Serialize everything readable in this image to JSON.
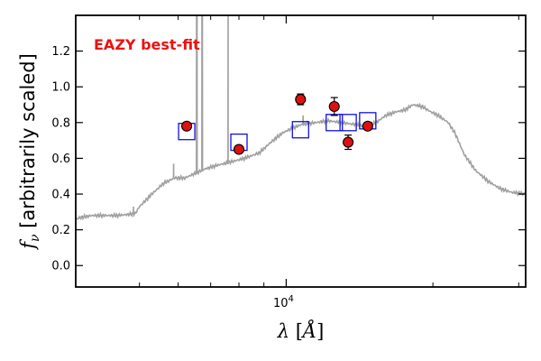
{
  "chart_data": {
    "type": "scatter",
    "title": "",
    "annotation": {
      "text": "EAZY best-fit",
      "color": "#ee1111"
    },
    "xlabel": "λ [Å]",
    "ylabel": "f_ν [arbitrarily scaled]",
    "x_scale": "log",
    "xlim": [
      3700,
      31000
    ],
    "ylim": [
      -0.12,
      1.4
    ],
    "x_major_ticks": [
      {
        "value": 10000,
        "label": "10^4"
      }
    ],
    "x_minor_ticks": [
      5000,
      6000,
      7000,
      8000,
      9000,
      20000,
      30000
    ],
    "y_ticks": [
      {
        "value": 0.0,
        "label": "0.0"
      },
      {
        "value": 0.2,
        "label": "0.2"
      },
      {
        "value": 0.4,
        "label": "0.4"
      },
      {
        "value": 0.6,
        "label": "0.6"
      },
      {
        "value": 0.8,
        "label": "0.8"
      },
      {
        "value": 1.0,
        "label": "1.0"
      },
      {
        "value": 1.2,
        "label": "1.2"
      }
    ],
    "grid": false,
    "colors": {
      "sed": "#a0a0a0",
      "model": "#1111dd",
      "observed_face": "#dd1111",
      "observed_edge": "#000000"
    },
    "sed_continuum": [
      [
        3700,
        0.26
      ],
      [
        3800,
        0.27
      ],
      [
        4000,
        0.28
      ],
      [
        4500,
        0.28
      ],
      [
        4900,
        0.29
      ],
      [
        5000,
        0.33
      ],
      [
        5300,
        0.4
      ],
      [
        5600,
        0.46
      ],
      [
        5900,
        0.49
      ],
      [
        6200,
        0.49
      ],
      [
        6550,
        0.52
      ],
      [
        6800,
        0.54
      ],
      [
        7200,
        0.56
      ],
      [
        7700,
        0.58
      ],
      [
        8200,
        0.6
      ],
      [
        8800,
        0.63
      ],
      [
        9300,
        0.69
      ],
      [
        9800,
        0.74
      ],
      [
        10300,
        0.77
      ],
      [
        10800,
        0.79
      ],
      [
        11500,
        0.8
      ],
      [
        12200,
        0.81
      ],
      [
        13000,
        0.8
      ],
      [
        13800,
        0.79
      ],
      [
        14500,
        0.78
      ],
      [
        15300,
        0.8
      ],
      [
        16000,
        0.84
      ],
      [
        16800,
        0.86
      ],
      [
        17500,
        0.87
      ],
      [
        18200,
        0.9
      ],
      [
        19000,
        0.89
      ],
      [
        19800,
        0.86
      ],
      [
        20500,
        0.84
      ],
      [
        21500,
        0.8
      ],
      [
        22200,
        0.74
      ],
      [
        23200,
        0.62
      ],
      [
        24500,
        0.53
      ],
      [
        26000,
        0.47
      ],
      [
        27500,
        0.43
      ],
      [
        29000,
        0.41
      ],
      [
        31000,
        0.4
      ]
    ],
    "sed_lines": [
      {
        "x": 4860,
        "top": 0.33,
        "base": 0.29
      },
      {
        "x": 5876,
        "top": 0.57,
        "base": 0.49
      },
      {
        "x": 6548,
        "top": 1.4,
        "base": 0.52
      },
      {
        "x": 6563,
        "top": 1.4,
        "base": 0.52
      },
      {
        "x": 6717,
        "top": 1.4,
        "base": 0.53
      },
      {
        "x": 6731,
        "top": 1.4,
        "base": 0.53
      },
      {
        "x": 7600,
        "top": 1.4,
        "base": 0.58
      },
      {
        "x": 10830,
        "top": 0.84,
        "base": 0.79
      }
    ],
    "model_fluxes": [
      {
        "x": 6250,
        "y": 0.75
      },
      {
        "x": 8000,
        "y": 0.69
      },
      {
        "x": 10700,
        "y": 0.76
      },
      {
        "x": 12550,
        "y": 0.8
      },
      {
        "x": 13400,
        "y": 0.8
      },
      {
        "x": 14700,
        "y": 0.81
      }
    ],
    "observed_fluxes": [
      {
        "x": 6250,
        "y": 0.78,
        "yerr": 0.02
      },
      {
        "x": 8000,
        "y": 0.65,
        "yerr": 0.015
      },
      {
        "x": 10700,
        "y": 0.93,
        "yerr": 0.03
      },
      {
        "x": 12550,
        "y": 0.89,
        "yerr": 0.05
      },
      {
        "x": 13400,
        "y": 0.69,
        "yerr": 0.04
      },
      {
        "x": 14700,
        "y": 0.78,
        "yerr": 0.02
      }
    ]
  }
}
